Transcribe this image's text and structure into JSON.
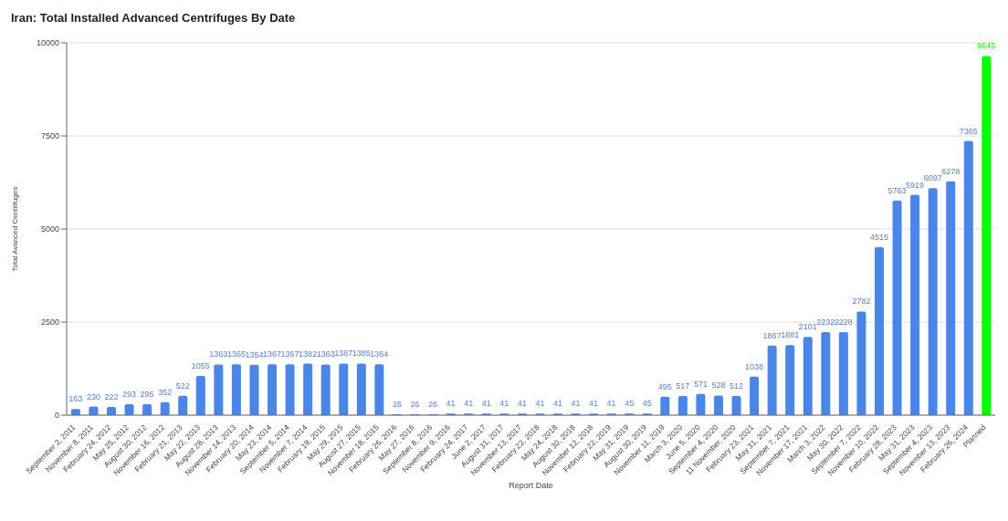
{
  "chart_data": {
    "type": "bar",
    "title": "Iran: Total Installed Advanced Centrifuges By Date",
    "xlabel": "Report Date",
    "ylabel": "Total Avanced Centrifuges",
    "categories": [
      "September 2, 2011",
      "November 8, 2011",
      "February 24, 2012",
      "May 25, 2012",
      "August 30, 2012",
      "November 16, 2012",
      "February 21, 2013",
      "May 22, 2013",
      "August 28, 2013",
      "November 14, 2013",
      "February 20, 2014",
      "May 23, 2014",
      "September 5, 2014",
      "November 7, 2014",
      "February 19, 2015",
      "May 29, 2015",
      "August 27, 2015",
      "November 18, 2015",
      "February 26, 2016",
      "May 27, 2016",
      "September 8, 2016",
      "November 9, 2016",
      "February 24, 2017",
      "June 2, 2017",
      "August 31, 2017",
      "November 13, 2017",
      "February 22, 2018",
      "May 24, 2018",
      "August 30, 2018",
      "November 12, 2018",
      "February 22, 2019",
      "May 31, 2019",
      "August 30, 2019",
      "November 11, 2019",
      "March 3, 2020",
      "June 5, 2020",
      "September 4, 2020",
      "11 November, 2020",
      "February 23, 2021",
      "May 31, 2021",
      "September 7, 2021",
      "November 17, 2021",
      "March 3, 2022",
      "May 30, 2022",
      "September 7, 2022",
      "November 10, 2022",
      "February 28, 2023",
      "May 31, 2023",
      "September 4, 2023",
      "November 13, 2023",
      "February 26, 2024",
      "Planned"
    ],
    "values": [
      163,
      230,
      222,
      293,
      295,
      352,
      522,
      1055,
      1363,
      1365,
      1354,
      1367,
      1367,
      1382,
      1363,
      1387,
      1385,
      1364,
      26,
      26,
      26,
      41,
      41,
      41,
      41,
      41,
      41,
      41,
      41,
      41,
      41,
      45,
      45,
      495,
      517,
      571,
      528,
      512,
      1038,
      1867,
      1881,
      2101,
      2232,
      2228,
      2782,
      4515,
      5763,
      5919,
      6097,
      6278,
      7365,
      9645
    ],
    "colors": [
      "#4a86e8",
      "#4a86e8",
      "#4a86e8",
      "#4a86e8",
      "#4a86e8",
      "#4a86e8",
      "#4a86e8",
      "#4a86e8",
      "#4a86e8",
      "#4a86e8",
      "#4a86e8",
      "#4a86e8",
      "#4a86e8",
      "#4a86e8",
      "#4a86e8",
      "#4a86e8",
      "#4a86e8",
      "#4a86e8",
      "#4a86e8",
      "#4a86e8",
      "#4a86e8",
      "#4a86e8",
      "#4a86e8",
      "#4a86e8",
      "#4a86e8",
      "#4a86e8",
      "#4a86e8",
      "#4a86e8",
      "#4a86e8",
      "#4a86e8",
      "#4a86e8",
      "#4a86e8",
      "#4a86e8",
      "#4a86e8",
      "#4a86e8",
      "#4a86e8",
      "#4a86e8",
      "#4a86e8",
      "#4a86e8",
      "#4a86e8",
      "#4a86e8",
      "#4a86e8",
      "#4a86e8",
      "#4a86e8",
      "#4a86e8",
      "#4a86e8",
      "#4a86e8",
      "#4a86e8",
      "#4a86e8",
      "#4a86e8",
      "#4a86e8",
      "#00ff00"
    ],
    "ylim": [
      0,
      10000
    ],
    "yticks": [
      0,
      2500,
      5000,
      7500,
      10000
    ],
    "grid": "y",
    "data_labels": true
  }
}
